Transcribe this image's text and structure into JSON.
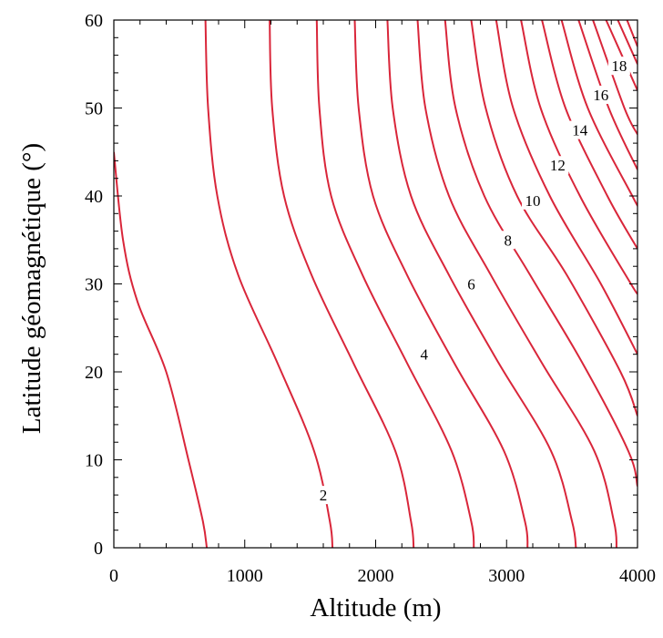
{
  "chart_data": {
    "type": "contour",
    "title": "",
    "xlabel": "Altitude (m)",
    "ylabel": "Latitude géomagnétique (°)",
    "xlim": [
      0,
      4000
    ],
    "ylim": [
      0,
      60
    ],
    "x_ticks": [
      0,
      1000,
      2000,
      3000,
      4000
    ],
    "y_ticks": [
      0,
      10,
      20,
      30,
      40,
      50,
      60
    ],
    "grid": false,
    "contour_color": "#d9263a",
    "levels": [
      {
        "level": 1,
        "points": [
          [
            0,
            45
          ],
          [
            70,
            35
          ],
          [
            180,
            28
          ],
          [
            400,
            20
          ],
          [
            570,
            10
          ],
          [
            680,
            3
          ],
          [
            710,
            0
          ]
        ]
      },
      {
        "level": 2,
        "points": [
          [
            700,
            60
          ],
          [
            720,
            50
          ],
          [
            790,
            40
          ],
          [
            950,
            31
          ],
          [
            1250,
            21
          ],
          [
            1530,
            11
          ],
          [
            1650,
            3
          ],
          [
            1670,
            0
          ]
        ]
      },
      {
        "level": 3,
        "points": [
          [
            1190,
            60
          ],
          [
            1210,
            50
          ],
          [
            1300,
            40
          ],
          [
            1510,
            31
          ],
          [
            1830,
            21
          ],
          [
            2150,
            11
          ],
          [
            2270,
            3
          ],
          [
            2290,
            0
          ]
        ]
      },
      {
        "level": 4,
        "points": [
          [
            1550,
            60
          ],
          [
            1570,
            50
          ],
          [
            1660,
            40
          ],
          [
            1900,
            31
          ],
          [
            2240,
            21
          ],
          [
            2580,
            11
          ],
          [
            2730,
            3
          ],
          [
            2750,
            0
          ]
        ]
      },
      {
        "level": 5,
        "points": [
          [
            1840,
            60
          ],
          [
            1870,
            50
          ],
          [
            1980,
            40
          ],
          [
            2240,
            31
          ],
          [
            2600,
            21
          ],
          [
            2980,
            11
          ],
          [
            3140,
            3
          ],
          [
            3160,
            0
          ]
        ]
      },
      {
        "level": 6,
        "points": [
          [
            2090,
            60
          ],
          [
            2130,
            50
          ],
          [
            2270,
            40
          ],
          [
            2560,
            31
          ],
          [
            2940,
            21
          ],
          [
            3340,
            11
          ],
          [
            3500,
            3
          ],
          [
            3530,
            0
          ]
        ]
      },
      {
        "level": 7,
        "points": [
          [
            2320,
            60
          ],
          [
            2380,
            50
          ],
          [
            2560,
            40
          ],
          [
            2880,
            31
          ],
          [
            3270,
            21
          ],
          [
            3670,
            11
          ],
          [
            3820,
            3
          ],
          [
            3840,
            0
          ]
        ]
      },
      {
        "level": 8,
        "points": [
          [
            2530,
            60
          ],
          [
            2610,
            50
          ],
          [
            2830,
            40
          ],
          [
            3180,
            31
          ],
          [
            3580,
            21
          ],
          [
            3930,
            11
          ],
          [
            4000,
            7
          ]
        ]
      },
      {
        "level": 9,
        "points": [
          [
            2730,
            60
          ],
          [
            2840,
            50
          ],
          [
            3080,
            40
          ],
          [
            3460,
            31
          ],
          [
            3870,
            20
          ],
          [
            4000,
            15
          ]
        ]
      },
      {
        "level": 10,
        "points": [
          [
            2920,
            60
          ],
          [
            3050,
            50
          ],
          [
            3330,
            40
          ],
          [
            3720,
            30
          ],
          [
            4000,
            22
          ]
        ]
      },
      {
        "level": 11,
        "points": [
          [
            3110,
            60
          ],
          [
            3260,
            50
          ],
          [
            3560,
            40
          ],
          [
            3950,
            30
          ],
          [
            4000,
            29
          ]
        ]
      },
      {
        "level": 12,
        "points": [
          [
            3270,
            60
          ],
          [
            3450,
            50
          ],
          [
            3770,
            40
          ],
          [
            4000,
            34
          ]
        ]
      },
      {
        "level": 13,
        "points": [
          [
            3420,
            60
          ],
          [
            3620,
            50
          ],
          [
            3960,
            40
          ],
          [
            4000,
            39
          ]
        ]
      },
      {
        "level": 14,
        "points": [
          [
            3550,
            60
          ],
          [
            3780,
            50
          ],
          [
            4000,
            43
          ]
        ]
      },
      {
        "level": 15,
        "points": [
          [
            3660,
            60
          ],
          [
            3900,
            50
          ],
          [
            4000,
            47
          ]
        ]
      },
      {
        "level": 16,
        "points": [
          [
            3760,
            60
          ],
          [
            4000,
            52
          ]
        ]
      },
      {
        "level": 17,
        "points": [
          [
            3850,
            60
          ],
          [
            4000,
            55
          ]
        ]
      },
      {
        "level": 18,
        "points": [
          [
            3920,
            60
          ],
          [
            4000,
            57
          ]
        ]
      }
    ],
    "annotations": [
      {
        "text": "2",
        "x": 1600,
        "y": 6
      },
      {
        "text": "4",
        "x": 2370,
        "y": 22
      },
      {
        "text": "6",
        "x": 2730,
        "y": 30
      },
      {
        "text": "8",
        "x": 3010,
        "y": 35
      },
      {
        "text": "10",
        "x": 3200,
        "y": 39.5
      },
      {
        "text": "12",
        "x": 3390,
        "y": 43.5
      },
      {
        "text": "14",
        "x": 3560,
        "y": 47.5
      },
      {
        "text": "16",
        "x": 3720,
        "y": 51.5
      },
      {
        "text": "18",
        "x": 3860,
        "y": 54.8
      }
    ]
  }
}
